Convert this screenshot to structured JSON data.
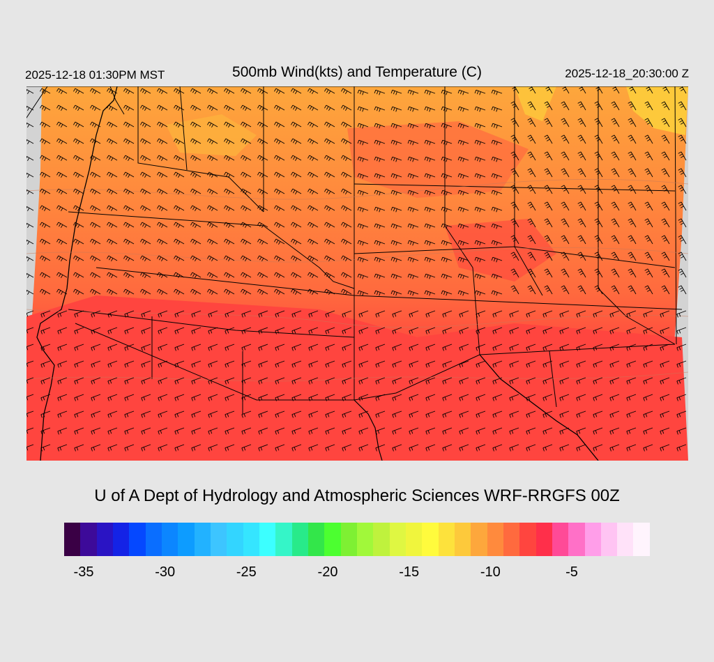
{
  "header": {
    "local_time": "2025-12-18 01:30PM MST",
    "title": "500mb Wind(kts) and Temperature (C)",
    "utc_time": "2025-12-18_20:30:00 Z"
  },
  "credit": "U of A Dept of Hydrology and Atmospheric Sciences WRF-RRGFS 00Z",
  "colorbar": {
    "colors": [
      "#3a0045",
      "#3d0a99",
      "#2a14c4",
      "#1423e6",
      "#0548ff",
      "#0a6eff",
      "#0c86ff",
      "#0d9cff",
      "#22b2ff",
      "#3dc5ff",
      "#33d5ff",
      "#35e5ff",
      "#3cffff",
      "#35f5c8",
      "#28ea8a",
      "#33e64a",
      "#4cff30",
      "#7ef033",
      "#a1f83a",
      "#bff23d",
      "#dff742",
      "#f0f53d",
      "#fffb3d",
      "#fde23c",
      "#fdc93b",
      "#fda73c",
      "#ff8a3d",
      "#ff6a3e",
      "#ff453f",
      "#ff2f4a",
      "#ff4a97",
      "#ff70c7",
      "#ff9ee9",
      "#ffc4f3",
      "#ffe2f9",
      "#fff4fd"
    ],
    "tick_labels": [
      "-35",
      "-30",
      "-25",
      "-20",
      "-15",
      "-10",
      "-5"
    ]
  }
}
